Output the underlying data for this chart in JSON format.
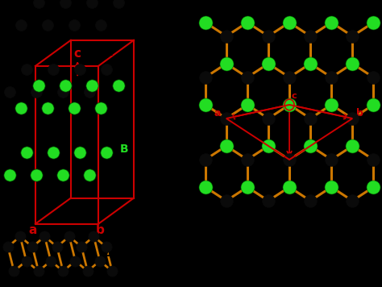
{
  "bg_left": "#ffffff",
  "bg_right_top": "#ffffff",
  "bg_right_bottom": "#000000",
  "bond_color": "#cc7700",
  "bond_lw": 2.2,
  "atom_black": "#0a0a0a",
  "atom_green": "#22dd22",
  "red_color": "#cc0000",
  "atom_black_ec": "#000000",
  "atom_green_ec": "#007700"
}
